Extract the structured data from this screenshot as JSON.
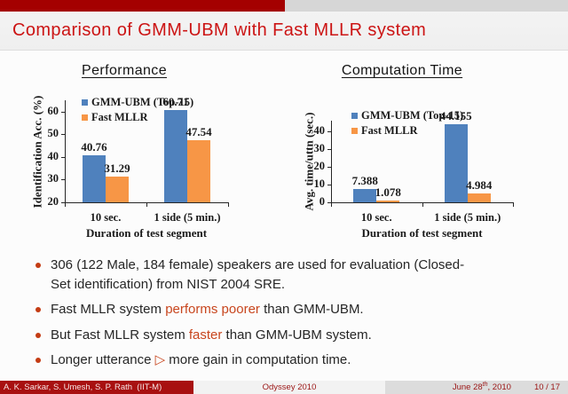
{
  "slide": {
    "title": "Comparison of GMM-UBM with Fast MLLR system"
  },
  "bullets": [
    {
      "segments": [
        {
          "text": "306 (122 Male, 184 female) speakers are used for evaluation (Closed-Set identification) from NIST 2004 SRE.",
          "style": "normal"
        }
      ]
    },
    {
      "segments": [
        {
          "text": "Fast MLLR system ",
          "style": "normal"
        },
        {
          "text": "performs poorer",
          "style": "alert"
        },
        {
          "text": " than GMM-UBM.",
          "style": "normal"
        }
      ]
    },
    {
      "segments": [
        {
          "text": "But Fast MLLR system ",
          "style": "normal"
        },
        {
          "text": "faster",
          "style": "alert"
        },
        {
          "text": " than GMM-UBM system.",
          "style": "normal"
        }
      ]
    },
    {
      "segments": [
        {
          "text": "Longer utterance ",
          "style": "normal"
        },
        {
          "text": "▷",
          "style": "triangle"
        },
        {
          "text": " more gain in computation time.",
          "style": "normal"
        }
      ]
    }
  ],
  "footer": {
    "authors": "A. K. Sarkar, S. Umesh, S. P. Rath  (IIT-M)",
    "venue": "Odyssey 2010",
    "date_prefix": "June 28",
    "date_sup": "th",
    "date_suffix": ", 2010",
    "page": "10 / 17"
  },
  "chart_data": [
    {
      "type": "bar",
      "title": "Performance",
      "categories": [
        "10 sec.",
        "1 side (5 min.)"
      ],
      "series": [
        {
          "name": "GMM-UBM (Top-15)",
          "color": "#4f81bd",
          "values": [
            40.76,
            60.71
          ]
        },
        {
          "name": "Fast MLLR",
          "color": "#f79646",
          "values": [
            31.29,
            47.54
          ]
        }
      ],
      "xlabel": "Duration of test segment",
      "ylabel": "Identification Acc. (%)",
      "ylim": [
        20,
        65
      ],
      "yticks": [
        20,
        30,
        40,
        50,
        60
      ],
      "legend_position": "top-left",
      "grid": false
    },
    {
      "type": "bar",
      "title": "Computation Time",
      "categories": [
        "10 sec.",
        "1 side (5 min.)"
      ],
      "series": [
        {
          "name": "GMM-UBM (Top-15)",
          "color": "#4f81bd",
          "values": [
            7.388,
            44.155
          ]
        },
        {
          "name": "Fast MLLR",
          "color": "#f79646",
          "values": [
            1.078,
            4.984
          ]
        }
      ],
      "xlabel": "Duration of test segment",
      "ylabel": "Avg. time/uttn (sec.)",
      "ylim": [
        0,
        46
      ],
      "yticks": [
        0,
        10,
        20,
        30,
        40
      ],
      "legend_position": "top-left",
      "grid": false
    }
  ],
  "colors": {
    "title_red": "#cc1414",
    "header_dark_red": "#a40000",
    "header_gray": "#d6d6d6",
    "alert_orange_red": "#c8461e",
    "bullet_marker": "#c43c14",
    "bar_blue": "#4f81bd",
    "bar_orange": "#f79646",
    "footer_box_red": "#a81010",
    "footer_text_red": "#9b1515"
  }
}
